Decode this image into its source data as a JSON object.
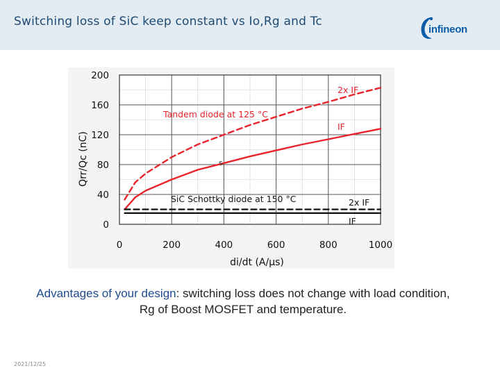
{
  "slide": {
    "title": "Switching loss of SiC keep constant vs Io,Rg and Tc",
    "logo_text": "infineon",
    "caption_highlight": "Advantages of your design",
    "caption_rest": ": switching loss does not change with load condition, Rg of Boost MOSFET and temperature.",
    "date": "2021/12/25"
  },
  "colors": {
    "header_bg": "#e4ecf3",
    "title": "#1f4b73",
    "tandem": "#e8232a",
    "schottky": "#111111",
    "logo": "#0b5ca8"
  },
  "chart_data": {
    "type": "line",
    "xlabel": "di/dt (A/μs)",
    "ylabel": "Qrr/Qc (nC)",
    "xlim": [
      0,
      1000
    ],
    "ylim": [
      0,
      200
    ],
    "xticks": [
      "0",
      "200",
      "400",
      "600",
      "800",
      "1000"
    ],
    "yticks": [
      "0",
      "40",
      "80",
      "120",
      "160",
      "200"
    ],
    "grid": true,
    "annotations": {
      "tandem": "Tandem diode at 125 °C",
      "schottky": "SiC Schottky diode at 150 °C",
      "marker": "s"
    },
    "series": [
      {
        "name": "2x IF",
        "group": "Tandem diode at 125 °C",
        "style": "dashed",
        "color": "#e8232a",
        "x": [
          20,
          60,
          100,
          200,
          300,
          400,
          500,
          600,
          700,
          800,
          900,
          1000
        ],
        "y": [
          33,
          56,
          68,
          90,
          107,
          120,
          133,
          144,
          155,
          164,
          174,
          183
        ]
      },
      {
        "name": "IF",
        "group": "Tandem diode at 125 °C",
        "style": "solid",
        "color": "#e8232a",
        "x": [
          20,
          60,
          100,
          200,
          300,
          400,
          500,
          600,
          700,
          800,
          900,
          1000
        ],
        "y": [
          20,
          36,
          45,
          60,
          73,
          82,
          91,
          99,
          107,
          114,
          121,
          128
        ]
      },
      {
        "name": "2x IF",
        "group": "SiC Schottky diode at 150 °C",
        "style": "dashed",
        "color": "#111111",
        "x": [
          20,
          1000
        ],
        "y": [
          20,
          20
        ]
      },
      {
        "name": "IF",
        "group": "SiC Schottky diode at 150 °C",
        "style": "solid",
        "color": "#111111",
        "x": [
          20,
          1000
        ],
        "y": [
          15,
          15
        ]
      }
    ]
  }
}
